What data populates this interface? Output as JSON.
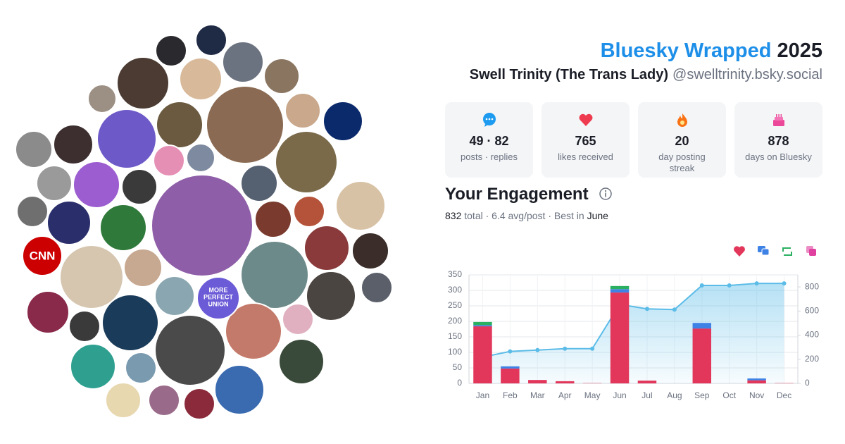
{
  "header": {
    "title": "Bluesky Wrapped",
    "year": "2025",
    "name": "Swell Trinity (The Trans Lady)",
    "handle": "@swelltrinity.bsky.social"
  },
  "avatars": {
    "news": "CNN",
    "union": [
      "MORE",
      "PERFECT",
      "UNION"
    ]
  },
  "stats": [
    {
      "value": "49 · 82",
      "label": "posts · replies"
    },
    {
      "value": "765",
      "label": "likes received"
    },
    {
      "value": "20",
      "label": "day posting streak"
    },
    {
      "value": "878",
      "label": "days on Bluesky"
    }
  ],
  "engagement": {
    "title": "Your Engagement",
    "total": "832",
    "summary": "total · 6.4 avg/post · Best in",
    "best": "June"
  },
  "chart_data": {
    "type": "bar",
    "stacked": true,
    "grid": true,
    "categories": [
      "Jan",
      "Feb",
      "Mar",
      "Apr",
      "May",
      "Jun",
      "Jul",
      "Aug",
      "Sep",
      "Oct",
      "Nov",
      "Dec"
    ],
    "series": [
      {
        "color": "#e2375b",
        "values": [
          184,
          48,
          11,
          7,
          1,
          293,
          9,
          0,
          177,
          0,
          10,
          1
        ]
      },
      {
        "color": "#3f82e6",
        "values": [
          4,
          7,
          0,
          0,
          0,
          11,
          0,
          0,
          18,
          0,
          6,
          0
        ]
      },
      {
        "color": "#2bb062",
        "values": [
          10,
          0,
          0,
          0,
          0,
          10,
          0,
          0,
          0,
          0,
          0,
          0
        ]
      },
      {
        "color": "#e0409f",
        "values": [
          0,
          0,
          0,
          0,
          0,
          0,
          0,
          0,
          0,
          0,
          0,
          0
        ]
      },
      {
        "type": "area",
        "axis": "y2",
        "color": "#5bbce8",
        "values": [
          218,
          265,
          276,
          288,
          288,
          655,
          618,
          612,
          812,
          812,
          829,
          829
        ]
      }
    ],
    "ylim": [
      0,
      350
    ],
    "yticks": [
      0,
      50,
      100,
      150,
      200,
      250,
      300,
      350
    ],
    "y2lim": [
      0,
      900
    ],
    "y2ticks": [
      0,
      200,
      400,
      600,
      800
    ]
  }
}
